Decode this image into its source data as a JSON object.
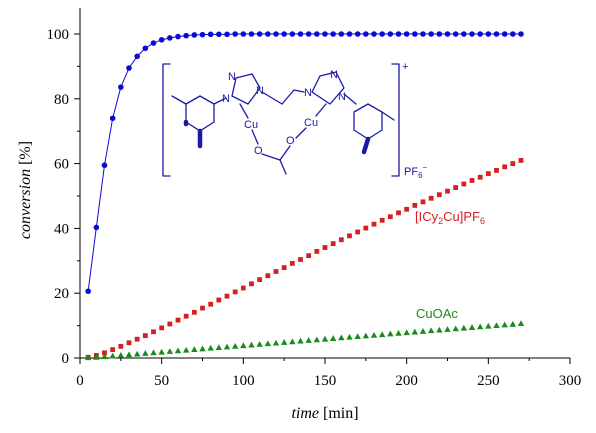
{
  "chart_data": {
    "type": "scatter",
    "xlabel_italic": "time",
    "xlabel_unit": "[min]",
    "ylabel_italic": "conversion",
    "ylabel_unit": "[%]",
    "xlim": [
      0,
      300
    ],
    "ylim": [
      0,
      100
    ],
    "xticks": [
      0,
      50,
      100,
      150,
      200,
      250,
      300
    ],
    "yticks": [
      0,
      20,
      40,
      60,
      80,
      100
    ],
    "grid": false,
    "legend": "inline labels",
    "series": [
      {
        "name": "PF6",
        "color": "#0a0ad6",
        "marker": "circle",
        "connected": true,
        "x": [
          5,
          10,
          15,
          20,
          25,
          30,
          35,
          40,
          45,
          50,
          55,
          60,
          65,
          70,
          75,
          80,
          85,
          90,
          95,
          100,
          105,
          110,
          115,
          120,
          125,
          130,
          135,
          140,
          145,
          150,
          155,
          160,
          165,
          170,
          175,
          180,
          185,
          190,
          195,
          200,
          205,
          210,
          215,
          220,
          225,
          230,
          235,
          240,
          245,
          250,
          255,
          260,
          265,
          270
        ],
        "y": [
          20.6,
          40.3,
          59.5,
          74,
          83.6,
          89.5,
          93.1,
          95.6,
          97.2,
          98.2,
          98.8,
          99.2,
          99.5,
          99.7,
          99.8,
          99.9,
          99.9,
          99.9,
          100,
          100,
          100,
          100,
          100,
          100,
          100,
          100,
          100,
          100,
          100,
          100,
          100,
          100,
          100,
          100,
          100,
          100,
          100,
          100,
          100,
          100,
          100,
          100,
          100,
          100,
          100,
          100,
          100,
          100,
          100,
          100,
          100,
          100,
          100,
          100
        ]
      },
      {
        "name": "[ICy₂Cu]PF₆",
        "color": "#d42020",
        "marker": "square",
        "connected": false,
        "x": [
          5,
          10,
          15,
          20,
          25,
          30,
          35,
          40,
          45,
          50,
          55,
          60,
          65,
          70,
          75,
          80,
          85,
          90,
          95,
          100,
          105,
          110,
          115,
          120,
          125,
          130,
          135,
          140,
          145,
          150,
          155,
          160,
          165,
          170,
          175,
          180,
          185,
          190,
          195,
          200,
          205,
          210,
          215,
          220,
          225,
          230,
          235,
          240,
          245,
          250,
          255,
          260,
          265,
          270
        ],
        "y": [
          0.2,
          0.8,
          1.6,
          2.6,
          3.6,
          4.7,
          5.8,
          6.9,
          8.1,
          9.3,
          10.5,
          11.7,
          12.9,
          14.1,
          15.4,
          16.6,
          17.9,
          19.1,
          20.4,
          21.6,
          22.9,
          24.2,
          25.4,
          26.7,
          27.9,
          29.2,
          30.4,
          31.6,
          32.9,
          34.1,
          35.3,
          36.5,
          37.7,
          38.9,
          40.1,
          41.3,
          42.5,
          43.6,
          44.8,
          45.9,
          47.1,
          48.2,
          49.3,
          50.4,
          51.5,
          52.6,
          53.7,
          54.8,
          55.8,
          56.9,
          57.9,
          59,
          60,
          61
        ]
      },
      {
        "name": "CuOAc",
        "color": "#1a8a1a",
        "marker": "triangle",
        "connected": false,
        "x": [
          5,
          10,
          15,
          20,
          25,
          30,
          35,
          40,
          45,
          50,
          55,
          60,
          65,
          70,
          75,
          80,
          85,
          90,
          95,
          100,
          105,
          110,
          115,
          120,
          125,
          130,
          135,
          140,
          145,
          150,
          155,
          160,
          165,
          170,
          175,
          180,
          185,
          190,
          195,
          200,
          205,
          210,
          215,
          220,
          225,
          230,
          235,
          240,
          245,
          250,
          255,
          260,
          265,
          270
        ],
        "y": [
          0.1,
          0.2,
          0.4,
          0.6,
          0.8,
          1,
          1.2,
          1.4,
          1.6,
          1.8,
          2,
          2.2,
          2.4,
          2.6,
          2.8,
          3,
          3.2,
          3.4,
          3.6,
          3.8,
          4,
          4.2,
          4.4,
          4.6,
          4.8,
          5,
          5.2,
          5.4,
          5.6,
          5.8,
          6,
          6.2,
          6.4,
          6.6,
          6.8,
          7,
          7.2,
          7.4,
          7.6,
          7.8,
          8,
          8.2,
          8.4,
          8.6,
          8.8,
          9,
          9.2,
          9.4,
          9.6,
          9.8,
          10,
          10.2,
          10.4,
          10.6
        ]
      }
    ]
  },
  "structure": {
    "atom_labels": [
      "N",
      "N",
      "N",
      "N",
      "N",
      "N",
      "Cu",
      "Cu",
      "O",
      "O"
    ],
    "charge": "+",
    "counterion_main": "PF",
    "counterion_sub": "6",
    "counterion_sup": "−"
  },
  "labels": {
    "red": {
      "prefix": "[ICy",
      "sub1": "2",
      "mid": "Cu]PF",
      "sub2": "6"
    },
    "green": "CuOAc"
  }
}
